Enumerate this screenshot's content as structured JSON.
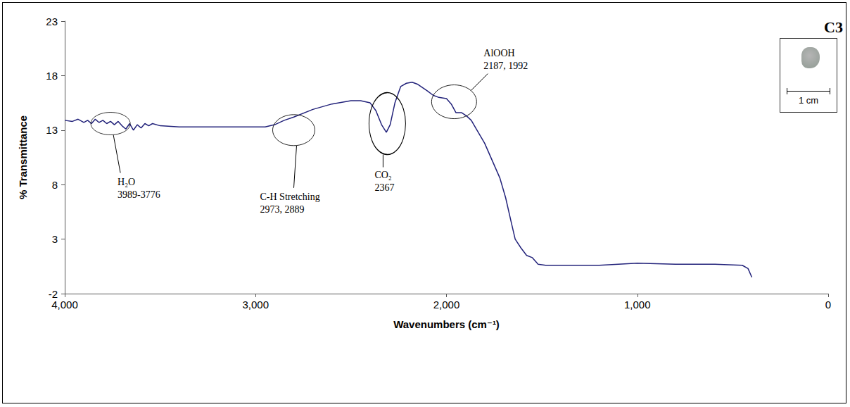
{
  "chart_data": {
    "type": "line",
    "x_label": "Wavenumbers (cm⁻¹)",
    "y_label": "% Transmittance",
    "xlim": [
      4000,
      0
    ],
    "xticks": [
      4000,
      3000,
      2000,
      1000,
      0
    ],
    "ylim": [
      -2,
      23
    ],
    "yticks": [
      -2,
      3,
      8,
      13,
      18,
      23
    ],
    "grid": false,
    "color": "#22227a",
    "x": [
      4000,
      3960,
      3930,
      3900,
      3880,
      3860,
      3840,
      3820,
      3800,
      3780,
      3760,
      3740,
      3720,
      3700,
      3680,
      3660,
      3640,
      3620,
      3600,
      3580,
      3560,
      3540,
      3500,
      3400,
      3300,
      3200,
      3100,
      3000,
      2950,
      2900,
      2850,
      2800,
      2700,
      2600,
      2500,
      2450,
      2400,
      2370,
      2340,
      2315,
      2295,
      2270,
      2240,
      2210,
      2180,
      2150,
      2100,
      2070,
      2040,
      2000,
      1975,
      1950,
      1920,
      1895,
      1870,
      1840,
      1800,
      1760,
      1720,
      1690,
      1660,
      1640,
      1610,
      1580,
      1550,
      1520,
      1480,
      1400,
      1200,
      1000,
      800,
      600,
      450,
      420,
      400
    ],
    "values": [
      13.9,
      13.8,
      14.0,
      13.7,
      13.9,
      13.6,
      14.0,
      13.7,
      13.9,
      13.6,
      13.8,
      13.5,
      13.8,
      13.4,
      13.1,
      13.6,
      13.0,
      13.5,
      13.2,
      13.6,
      13.4,
      13.6,
      13.4,
      13.3,
      13.3,
      13.3,
      13.3,
      13.3,
      13.3,
      13.5,
      13.9,
      14.2,
      14.9,
      15.4,
      15.7,
      15.7,
      15.5,
      14.8,
      13.5,
      12.8,
      13.5,
      15.5,
      17.0,
      17.3,
      17.4,
      17.2,
      16.6,
      16.2,
      16.0,
      15.9,
      15.4,
      14.6,
      14.6,
      14.3,
      13.9,
      13.0,
      11.8,
      10.2,
      8.6,
      6.8,
      4.5,
      3.0,
      2.2,
      1.5,
      1.3,
      0.7,
      0.6,
      0.6,
      0.6,
      0.8,
      0.7,
      0.7,
      0.6,
      0.3,
      -0.5
    ],
    "annotations": [
      {
        "lines": [
          "H₂O",
          "3989-3776"
        ],
        "x": 3760,
        "y": 13.6
      },
      {
        "lines": [
          "C-H Stretching",
          "2973, 2889"
        ],
        "x": 2800,
        "y": 13.0
      },
      {
        "lines": [
          "CO₂",
          "2367"
        ],
        "x": 2310,
        "y": 13.6
      },
      {
        "lines": [
          "AlOOH",
          "2187, 1992"
        ],
        "x": 1960,
        "y": 15.6
      }
    ],
    "inset": {
      "label": "C3",
      "scale_label": "1 cm"
    }
  }
}
